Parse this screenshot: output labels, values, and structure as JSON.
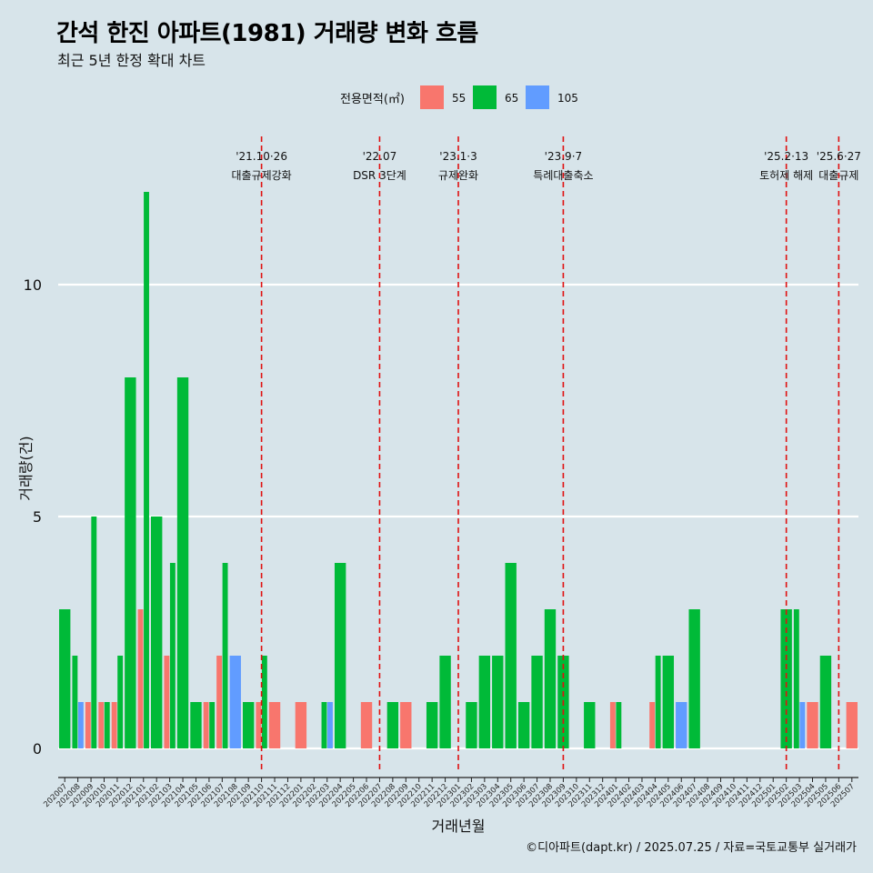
{
  "header": {
    "title": "간석 한진 아파트(1981) 거래량 변화 흐름",
    "subtitle": "최근 5년 한정 확대 차트"
  },
  "caption": "©디아파트(dapt.kr) / 2025.07.25 / 자료=국토교통부 실거래가",
  "chart_data": {
    "type": "bar",
    "stacking": "dodge",
    "xlabel": "거래년월",
    "ylabel": "거래량(건)",
    "ylim": [
      0,
      12
    ],
    "yticks": [
      0,
      5,
      10
    ],
    "grid": "horizontal-major",
    "legend": {
      "title": "전용면적(㎡)",
      "placement": "top"
    },
    "categories": [
      "202007",
      "202008",
      "202009",
      "202010",
      "202011",
      "202012",
      "202101",
      "202102",
      "202103",
      "202104",
      "202105",
      "202106",
      "202107",
      "202108",
      "202109",
      "202110",
      "202111",
      "202112",
      "202201",
      "202202",
      "202203",
      "202204",
      "202205",
      "202206",
      "202207",
      "202208",
      "202209",
      "202210",
      "202211",
      "202212",
      "202301",
      "202302",
      "202303",
      "202304",
      "202305",
      "202306",
      "202307",
      "202308",
      "202309",
      "202310",
      "202311",
      "202312",
      "202401",
      "202402",
      "202403",
      "202404",
      "202405",
      "202406",
      "202407",
      "202408",
      "202409",
      "202410",
      "202411",
      "202412",
      "202501",
      "202502",
      "202503",
      "202504",
      "202505",
      "202506",
      "202507"
    ],
    "series": [
      {
        "name": "55",
        "color": "#F8766D",
        "values": [
          0,
          0,
          1,
          1,
          1,
          0,
          3,
          0,
          2,
          0,
          0,
          1,
          2,
          0,
          0,
          1,
          1,
          0,
          1,
          0,
          0,
          0,
          0,
          1,
          0,
          0,
          1,
          0,
          0,
          0,
          0,
          0,
          0,
          0,
          0,
          0,
          0,
          0,
          0,
          0,
          0,
          0,
          1,
          0,
          0,
          1,
          0,
          0,
          0,
          0,
          0,
          0,
          0,
          0,
          0,
          0,
          0,
          1,
          0,
          0,
          1
        ]
      },
      {
        "name": "65",
        "color": "#00BA38",
        "values": [
          3,
          2,
          5,
          1,
          2,
          8,
          12,
          5,
          4,
          8,
          1,
          1,
          4,
          0,
          1,
          2,
          0,
          0,
          0,
          0,
          1,
          4,
          0,
          0,
          0,
          1,
          0,
          0,
          1,
          2,
          0,
          1,
          2,
          2,
          4,
          1,
          2,
          3,
          2,
          0,
          1,
          0,
          1,
          0,
          0,
          2,
          2,
          0,
          3,
          0,
          0,
          0,
          0,
          0,
          0,
          3,
          3,
          0,
          2,
          0,
          0
        ]
      },
      {
        "name": "105",
        "color": "#619CFF",
        "values": [
          0,
          1,
          0,
          0,
          0,
          0,
          0,
          0,
          0,
          0,
          0,
          0,
          0,
          2,
          0,
          0,
          0,
          0,
          0,
          0,
          1,
          0,
          0,
          0,
          0,
          0,
          0,
          0,
          0,
          0,
          0,
          0,
          0,
          0,
          0,
          0,
          0,
          0,
          0,
          0,
          0,
          0,
          0,
          0,
          0,
          0,
          0,
          1,
          0,
          0,
          0,
          0,
          0,
          0,
          0,
          0,
          1,
          0,
          0,
          0,
          0
        ]
      }
    ],
    "annotations": [
      {
        "x": "202110",
        "date": "'21.10·26",
        "label": "대출규제강화"
      },
      {
        "x": "202207",
        "date": "'22.07",
        "label": "DSR 3단계"
      },
      {
        "x": "202301",
        "date": "'23.1·3",
        "label": "규제완화"
      },
      {
        "x": "202309",
        "date": "'23.9·7",
        "label": "특례대출축소"
      },
      {
        "x": "202502",
        "date": "'25.2·13",
        "label": "토허제 해제"
      },
      {
        "x": "202506",
        "date": "'25.6·27",
        "label": "대출규제"
      }
    ]
  }
}
